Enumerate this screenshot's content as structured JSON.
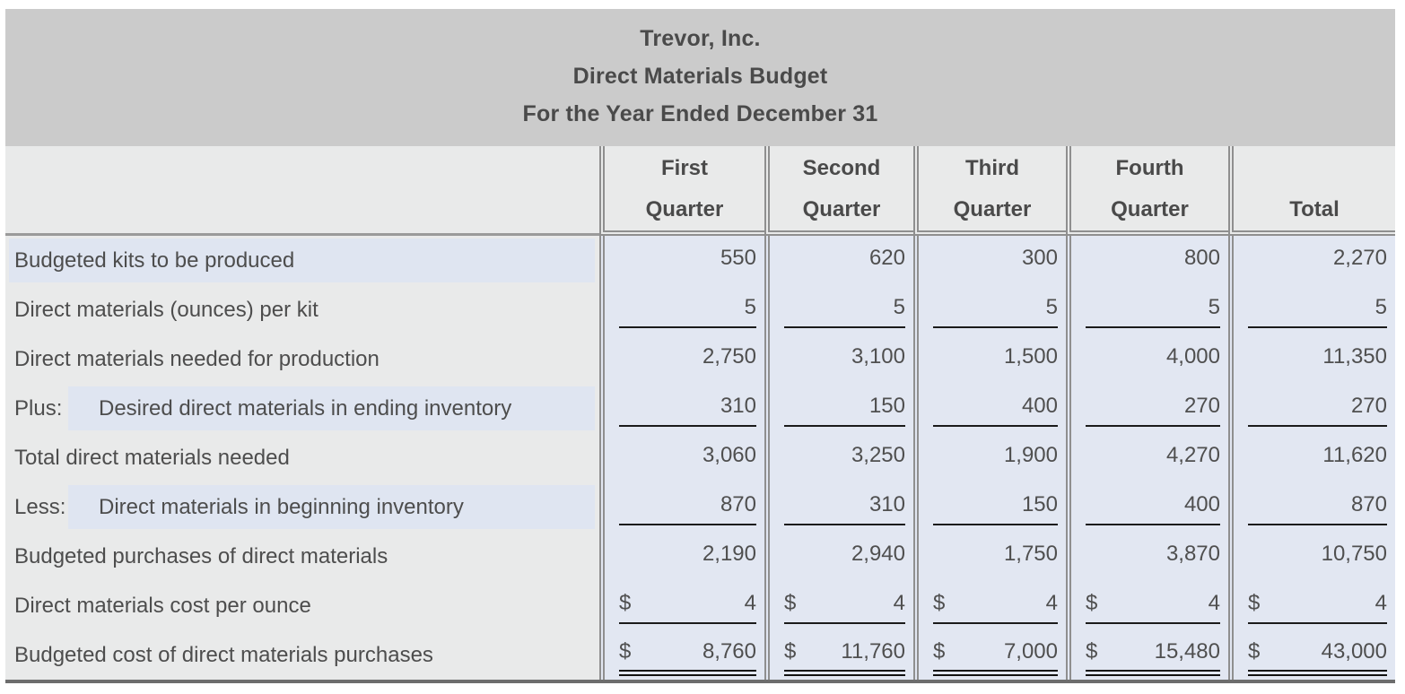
{
  "title": {
    "company": "Trevor, Inc.",
    "report": "Direct Materials Budget",
    "period": "For the Year Ended December 31"
  },
  "header": {
    "columns": [
      [
        "First",
        "Quarter"
      ],
      [
        "Second",
        "Quarter"
      ],
      [
        "Third",
        "Quarter"
      ],
      [
        "Fourth",
        "Quarter"
      ]
    ],
    "total_label": "Total"
  },
  "currency_symbol": "$",
  "rows": [
    {
      "label": "Budgeted kits to be produced",
      "prefix": null,
      "label_highlight": true,
      "currency": false,
      "underline": "none",
      "values": [
        "550",
        "620",
        "300",
        "800",
        "2,270"
      ]
    },
    {
      "label": "Direct materials (ounces) per kit",
      "prefix": null,
      "label_highlight": false,
      "currency": false,
      "underline": "single",
      "values": [
        "5",
        "5",
        "5",
        "5",
        "5"
      ]
    },
    {
      "label": "Direct materials needed for production",
      "prefix": null,
      "label_highlight": false,
      "currency": false,
      "underline": "none",
      "values": [
        "2,750",
        "3,100",
        "1,500",
        "4,000",
        "11,350"
      ]
    },
    {
      "label": "Desired direct materials in ending inventory",
      "prefix": "Plus:",
      "label_highlight": true,
      "currency": false,
      "underline": "single",
      "values": [
        "310",
        "150",
        "400",
        "270",
        "270"
      ]
    },
    {
      "label": "Total direct materials needed",
      "prefix": null,
      "label_highlight": false,
      "currency": false,
      "underline": "none",
      "values": [
        "3,060",
        "3,250",
        "1,900",
        "4,270",
        "11,620"
      ]
    },
    {
      "label": "Direct materials in beginning inventory",
      "prefix": "Less:",
      "label_highlight": true,
      "currency": false,
      "underline": "single",
      "values": [
        "870",
        "310",
        "150",
        "400",
        "870"
      ]
    },
    {
      "label": "Budgeted purchases of direct materials",
      "prefix": null,
      "label_highlight": false,
      "currency": false,
      "underline": "none",
      "values": [
        "2,190",
        "2,940",
        "1,750",
        "3,870",
        "10,750"
      ]
    },
    {
      "label": "Direct materials cost per ounce",
      "prefix": null,
      "label_highlight": false,
      "currency": true,
      "underline": "single",
      "values": [
        "4",
        "4",
        "4",
        "4",
        "4"
      ]
    },
    {
      "label": "Budgeted cost of direct materials purchases",
      "prefix": null,
      "label_highlight": false,
      "currency": true,
      "underline": "double",
      "values": [
        "8,760",
        "11,760",
        "7,000",
        "15,480",
        "43,000"
      ]
    }
  ],
  "colors": {
    "title_bg": "#cbcbcb",
    "header_bg": "#e9eaea",
    "label_bg": "#e9eaea",
    "value_bg": "#e2e7f2",
    "label_highlight_bg": "#dfe5f1",
    "divider": "#8f8f8f",
    "underline": "#1b1b1b",
    "bottom_border": "#6d6d6d",
    "text": "#4d4d4d"
  }
}
